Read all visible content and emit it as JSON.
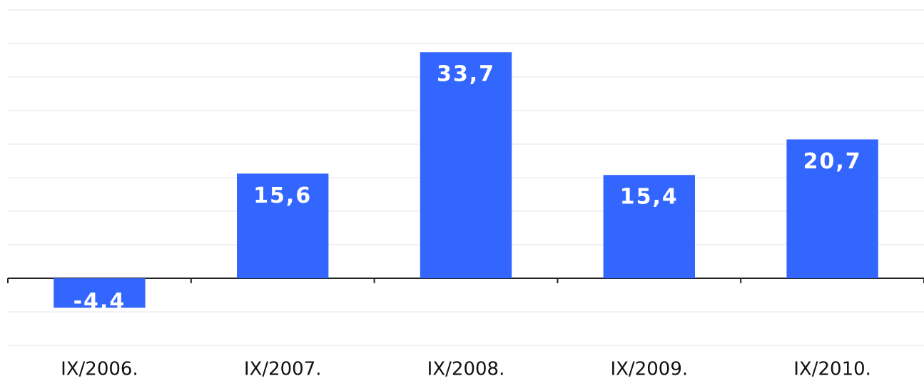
{
  "chart_data": {
    "type": "bar",
    "categories": [
      "IX/2006.",
      "IX/2007.",
      "IX/2008.",
      "IX/2009.",
      "IX/2010."
    ],
    "values": [
      -4.4,
      15.6,
      33.7,
      15.4,
      20.7
    ],
    "value_labels": [
      "-4,4",
      "15,6",
      "33,7",
      "15,4",
      "20,7"
    ],
    "color": "#3366ff",
    "ylim": [
      -10,
      40
    ],
    "yticks": [
      -10,
      -5,
      0,
      5,
      10,
      15,
      20,
      25,
      30,
      35,
      40
    ],
    "grid": true
  }
}
